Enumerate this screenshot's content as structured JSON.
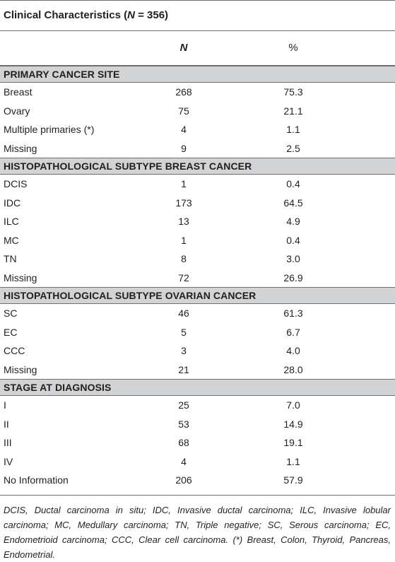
{
  "table": {
    "title_prefix": "Clinical Characteristics (",
    "title_n": "N",
    "title_suffix": " = 356)",
    "col_n": "N",
    "col_pct": "%",
    "sections": [
      {
        "heading": "PRIMARY CANCER SITE",
        "rows": [
          {
            "label": "Breast",
            "n": "268",
            "pct": "75.3"
          },
          {
            "label": "Ovary",
            "n": "75",
            "pct": "21.1"
          },
          {
            "label": "Multiple primaries (*)",
            "n": "4",
            "pct": "1.1"
          },
          {
            "label": "Missing",
            "n": "9",
            "pct": "2.5"
          }
        ]
      },
      {
        "heading": "HISTOPATHOLOGICAL SUBTYPE BREAST CANCER",
        "rows": [
          {
            "label": "DCIS",
            "n": "1",
            "pct": "0.4"
          },
          {
            "label": "IDC",
            "n": "173",
            "pct": "64.5"
          },
          {
            "label": "ILC",
            "n": "13",
            "pct": "4.9"
          },
          {
            "label": "MC",
            "n": "1",
            "pct": "0.4"
          },
          {
            "label": "TN",
            "n": "8",
            "pct": "3.0"
          },
          {
            "label": "Missing",
            "n": "72",
            "pct": "26.9"
          }
        ]
      },
      {
        "heading": "HISTOPATHOLOGICAL SUBTYPE OVARIAN CANCER",
        "rows": [
          {
            "label": "SC",
            "n": "46",
            "pct": "61.3"
          },
          {
            "label": "EC",
            "n": "5",
            "pct": "6.7"
          },
          {
            "label": "CCC",
            "n": "3",
            "pct": "4.0"
          },
          {
            "label": "Missing",
            "n": "21",
            "pct": "28.0"
          }
        ]
      },
      {
        "heading": "STAGE AT DIAGNOSIS",
        "rows": [
          {
            "label": "I",
            "n": "25",
            "pct": "7.0"
          },
          {
            "label": "II",
            "n": "53",
            "pct": "14.9"
          },
          {
            "label": "III",
            "n": "68",
            "pct": "19.1"
          },
          {
            "label": "IV",
            "n": "4",
            "pct": "1.1"
          },
          {
            "label": "No Information",
            "n": "206",
            "pct": "57.9"
          }
        ]
      }
    ],
    "footnote": "DCIS, Ductal carcinoma in situ; IDC, Invasive ductal carcinoma; ILC, Invasive lobular carcinoma; MC, Medullary carcinoma; TN, Triple negative; SC, Serous carcinoma; EC, Endometrioid carcinoma; CCC, Clear cell carcinoma. (*) Breast, Colon, Thyroid, Pancreas, Endometrial."
  }
}
